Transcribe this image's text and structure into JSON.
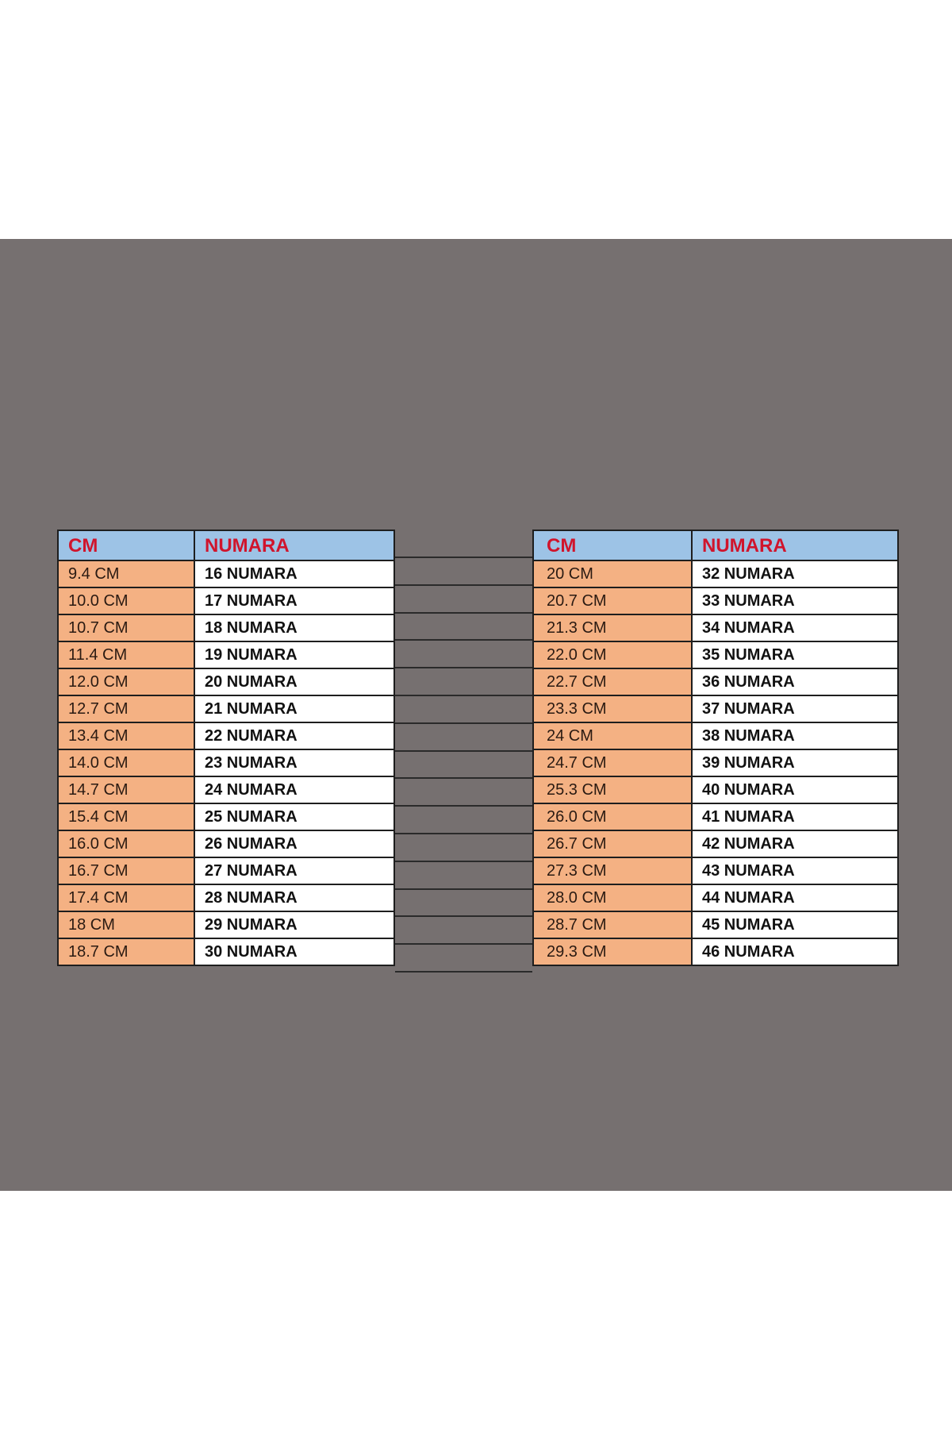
{
  "colors": {
    "background_band": "#767070",
    "header": "#9dc3e6",
    "header_text": "#d0142c",
    "cm_cell": "#f4b183",
    "numara_cell": "#ffffff"
  },
  "left_table": {
    "headers": [
      "CM",
      "NUMARA"
    ],
    "rows": [
      [
        "9.4 CM",
        "16 NUMARA"
      ],
      [
        "10.0 CM",
        "17 NUMARA"
      ],
      [
        "10.7 CM",
        "18 NUMARA"
      ],
      [
        "11.4 CM",
        "19 NUMARA"
      ],
      [
        "12.0 CM",
        "20 NUMARA"
      ],
      [
        "12.7 CM",
        "21 NUMARA"
      ],
      [
        "13.4 CM",
        "22 NUMARA"
      ],
      [
        "14.0 CM",
        "23 NUMARA"
      ],
      [
        "14.7 CM",
        "24 NUMARA"
      ],
      [
        "15.4 CM",
        "25 NUMARA"
      ],
      [
        "16.0 CM",
        "26 NUMARA"
      ],
      [
        "16.7 CM",
        "27 NUMARA"
      ],
      [
        "17.4 CM",
        "28 NUMARA"
      ],
      [
        "18 CM",
        "29 NUMARA"
      ],
      [
        "18.7 CM",
        "30 NUMARA"
      ]
    ]
  },
  "right_table": {
    "headers": [
      "CM",
      "NUMARA"
    ],
    "rows": [
      [
        "20 CM",
        "32 NUMARA"
      ],
      [
        "20.7 CM",
        "33 NUMARA"
      ],
      [
        "21.3 CM",
        "34 NUMARA"
      ],
      [
        "22.0 CM",
        "35 NUMARA"
      ],
      [
        "22.7 CM",
        "36 NUMARA"
      ],
      [
        "23.3 CM",
        "37 NUMARA"
      ],
      [
        "24 CM",
        "38 NUMARA"
      ],
      [
        "24.7 CM",
        "39 NUMARA"
      ],
      [
        "25.3 CM",
        "40 NUMARA"
      ],
      [
        "26.0 CM",
        "41 NUMARA"
      ],
      [
        "26.7 CM",
        "42 NUMARA"
      ],
      [
        "27.3 CM",
        "43 NUMARA"
      ],
      [
        "28.0 CM",
        "44 NUMARA"
      ],
      [
        "28.7 CM",
        "45 NUMARA"
      ],
      [
        "29.3 CM",
        "46 NUMARA"
      ]
    ]
  }
}
